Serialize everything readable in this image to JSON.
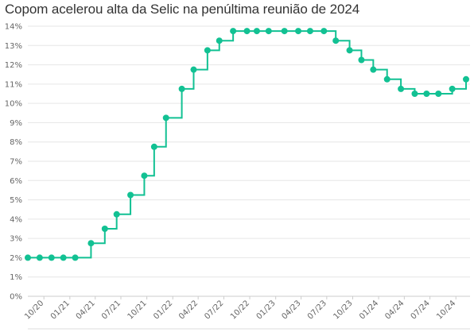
{
  "chart": {
    "title": "Copom acelerou alta da Selic na penúltima reunião de 2024"
  },
  "colors": {
    "series": "#12c193",
    "grid": "#e6e6e6",
    "axis": "#999999",
    "text": "#666666"
  },
  "chart_data": {
    "type": "line",
    "step": true,
    "title": "Copom acelerou alta da Selic na penúltima reunião de 2024",
    "xlabel": "",
    "ylabel": "",
    "ylim": [
      0,
      14
    ],
    "y_ticks": [
      "0%",
      "1%",
      "2%",
      "3%",
      "4%",
      "5%",
      "6%",
      "7%",
      "8%",
      "9%",
      "10%",
      "11%",
      "12%",
      "13%",
      "14%"
    ],
    "x_ticks": [
      "10/20",
      "01/21",
      "04/21",
      "07/21",
      "10/21",
      "01/22",
      "04/22",
      "07/22",
      "10/22",
      "01/23",
      "04/23",
      "07/23",
      "10/23",
      "01/24",
      "04/24",
      "07/24",
      "10/24"
    ],
    "grid": true,
    "legend": "none",
    "series": [
      {
        "x": [
          "2020-08-05",
          "2020-09-16",
          "2020-10-28",
          "2020-12-09",
          "2021-01-20",
          "2021-03-17",
          "2021-05-05",
          "2021-06-16",
          "2021-08-04",
          "2021-09-22",
          "2021-10-27",
          "2021-12-08",
          "2022-02-02",
          "2022-03-16",
          "2022-05-04",
          "2022-06-15",
          "2022-08-03",
          "2022-09-21",
          "2022-10-26",
          "2022-12-07",
          "2023-02-01",
          "2023-03-22",
          "2023-05-03",
          "2023-06-21",
          "2023-08-02",
          "2023-09-20",
          "2023-11-01",
          "2023-12-13",
          "2024-01-31",
          "2024-03-20",
          "2024-05-08",
          "2024-06-19",
          "2024-07-31",
          "2024-09-18",
          "2024-11-06"
        ],
        "values": [
          2.0,
          2.0,
          2.0,
          2.0,
          2.0,
          2.75,
          3.5,
          4.25,
          5.25,
          6.25,
          7.75,
          9.25,
          10.75,
          11.75,
          12.75,
          13.25,
          13.75,
          13.75,
          13.75,
          13.75,
          13.75,
          13.75,
          13.75,
          13.75,
          13.25,
          12.75,
          12.25,
          11.75,
          11.25,
          10.75,
          10.5,
          10.5,
          10.5,
          10.75,
          11.25
        ]
      }
    ]
  }
}
